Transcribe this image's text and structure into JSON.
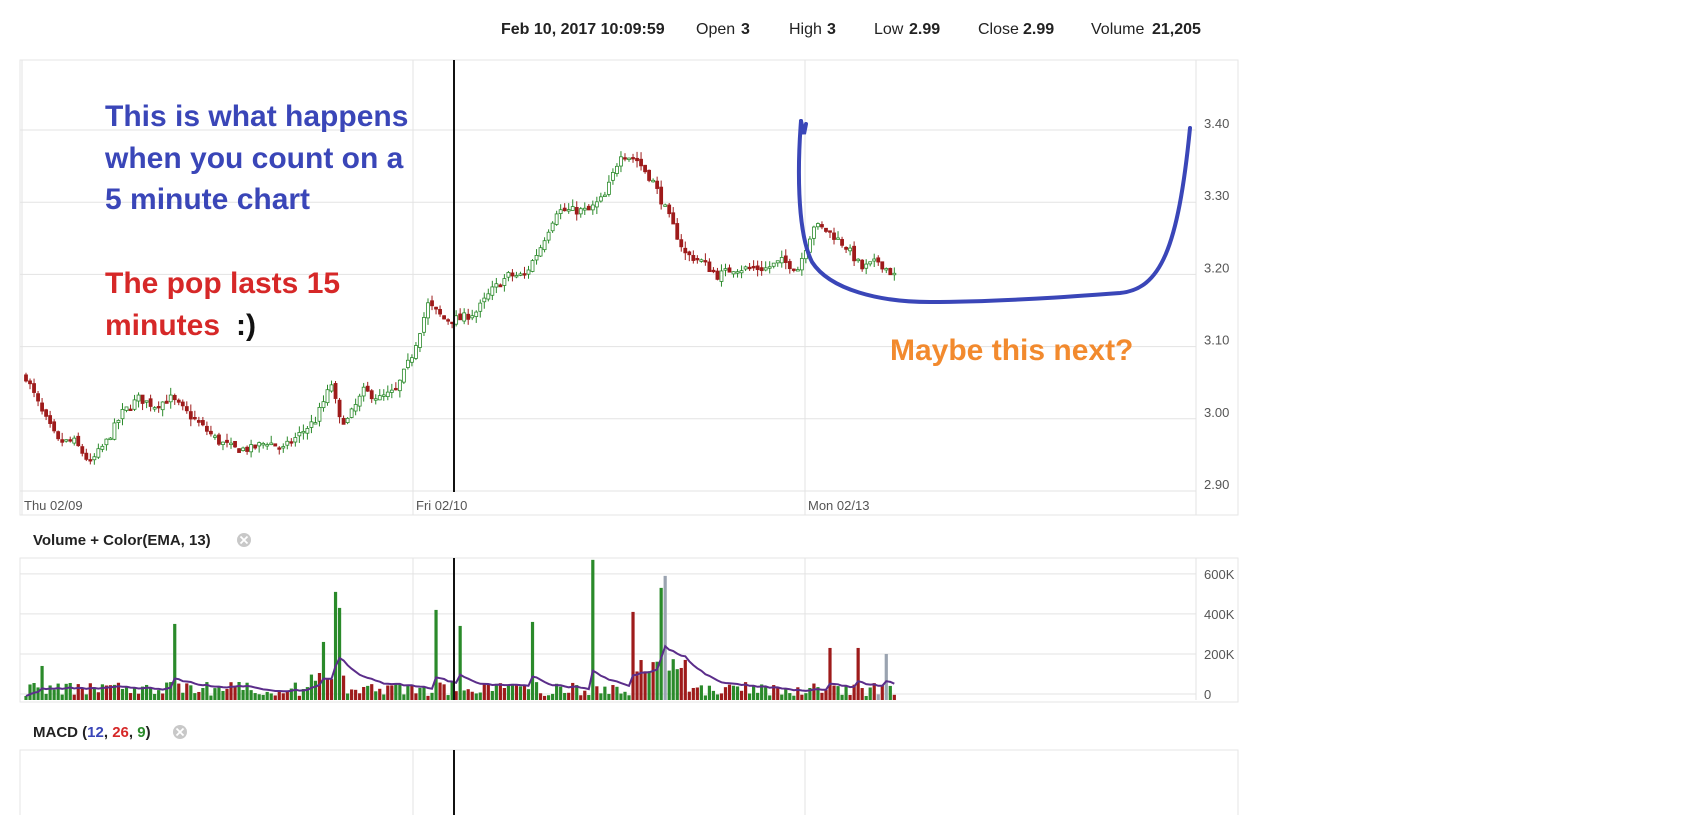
{
  "header": {
    "datetime": "Feb 10, 2017 10:09:59",
    "open_label": "Open",
    "open_value": "3",
    "high_label": "High",
    "high_value": "3",
    "low_label": "Low",
    "low_value": "2.99",
    "close_label": "Close",
    "close_value": "2.99",
    "volume_label": "Volume",
    "volume_value": "21,205"
  },
  "price_panel": {
    "y_ticks": [
      "3.40",
      "3.30",
      "3.20",
      "3.10",
      "3.00",
      "2.90"
    ],
    "x_ticks": [
      "Thu 02/09",
      "Fri 02/10",
      "Mon 02/13"
    ]
  },
  "volume_panel": {
    "title": "Volume + Color(EMA, 13)",
    "y_ticks": [
      "600K",
      "400K",
      "200K",
      "0"
    ]
  },
  "macd_panel": {
    "title_prefix": "MACD (",
    "p1": "12",
    "sep1": ", ",
    "p2": "26",
    "sep2": ", ",
    "p3": "9",
    "title_suffix": ")",
    "p1_color": "#3a46b8",
    "p2_color": "#d62828",
    "p3_color": "#2a8a2a"
  },
  "annotations": {
    "blue_line1": "This is what happens",
    "blue_line2": "when you count on a",
    "blue_line3": "5 minute chart",
    "red_line1": "The pop lasts 15",
    "red_line2": "minutes",
    "smiley": ":)",
    "orange": "Maybe this next?"
  },
  "colors": {
    "up": "#2a8a2a",
    "down": "#9e1b1b",
    "ema": "#5b2d8a",
    "annotation_blue": "#3a46b8",
    "annotation_red": "#d62828",
    "annotation_orange": "#f28a2e",
    "grid": "#e3e3e3"
  },
  "chart_data": {
    "type": "candlestick",
    "interval": "5 minute",
    "ylim": [
      2.88,
      3.48
    ],
    "sessions": [
      "Thu 02/09",
      "Fri 02/10",
      "Mon 02/13"
    ],
    "close_path": [
      [
        0,
        3.05
      ],
      [
        4,
        3.0
      ],
      [
        8,
        2.96
      ],
      [
        12,
        2.96
      ],
      [
        16,
        2.93
      ],
      [
        20,
        2.96
      ],
      [
        24,
        3.0
      ],
      [
        28,
        3.02
      ],
      [
        32,
        3.01
      ],
      [
        36,
        3.02
      ],
      [
        40,
        3.0
      ],
      [
        44,
        2.98
      ],
      [
        48,
        2.96
      ],
      [
        52,
        2.95
      ],
      [
        56,
        2.95
      ],
      [
        60,
        2.96
      ],
      [
        64,
        2.95
      ],
      [
        68,
        2.97
      ],
      [
        72,
        2.99
      ],
      [
        76,
        3.04
      ],
      [
        78,
        2.99
      ],
      [
        80,
        2.99
      ],
      [
        84,
        3.03
      ],
      [
        88,
        3.02
      ],
      [
        92,
        3.03
      ],
      [
        96,
        3.08
      ],
      [
        100,
        3.15
      ],
      [
        104,
        3.13
      ],
      [
        108,
        3.13
      ],
      [
        112,
        3.14
      ],
      [
        116,
        3.17
      ],
      [
        120,
        3.19
      ],
      [
        124,
        3.19
      ],
      [
        128,
        3.23
      ],
      [
        132,
        3.28
      ],
      [
        136,
        3.28
      ],
      [
        140,
        3.28
      ],
      [
        144,
        3.3
      ],
      [
        148,
        3.36
      ],
      [
        152,
        3.35
      ],
      [
        156,
        3.32
      ],
      [
        160,
        3.27
      ],
      [
        164,
        3.22
      ],
      [
        168,
        3.21
      ],
      [
        172,
        3.19
      ],
      [
        176,
        3.2
      ],
      [
        180,
        3.2
      ],
      [
        184,
        3.2
      ],
      [
        188,
        3.21
      ],
      [
        192,
        3.2
      ],
      [
        196,
        3.26
      ],
      [
        200,
        3.25
      ],
      [
        204,
        3.23
      ],
      [
        208,
        3.2
      ],
      [
        212,
        3.21
      ],
      [
        216,
        3.19
      ]
    ],
    "volume_ylim": [
      0,
      700000
    ],
    "volume_y_ticks": [
      0,
      200000,
      400000,
      600000
    ],
    "volume_spikes": [
      {
        "bar": 4,
        "value": 170000
      },
      {
        "bar": 37,
        "value": 380000
      },
      {
        "bar": 74,
        "value": 290000
      },
      {
        "bar": 77,
        "value": 540000
      },
      {
        "bar": 78,
        "value": 460000
      },
      {
        "bar": 102,
        "value": 450000
      },
      {
        "bar": 108,
        "value": 370000
      },
      {
        "bar": 126,
        "value": 390000
      },
      {
        "bar": 141,
        "value": 700000
      },
      {
        "bar": 151,
        "value": 440000
      },
      {
        "bar": 158,
        "value": 560000
      },
      {
        "bar": 159,
        "value": 620000
      },
      {
        "bar": 200,
        "value": 260000
      },
      {
        "bar": 207,
        "value": 260000
      },
      {
        "bar": 214,
        "value": 230000
      }
    ],
    "annotations": [
      "This is what happens when you count on a 5 minute chart",
      "The pop lasts 15 minutes :)",
      "Maybe this next?"
    ]
  }
}
